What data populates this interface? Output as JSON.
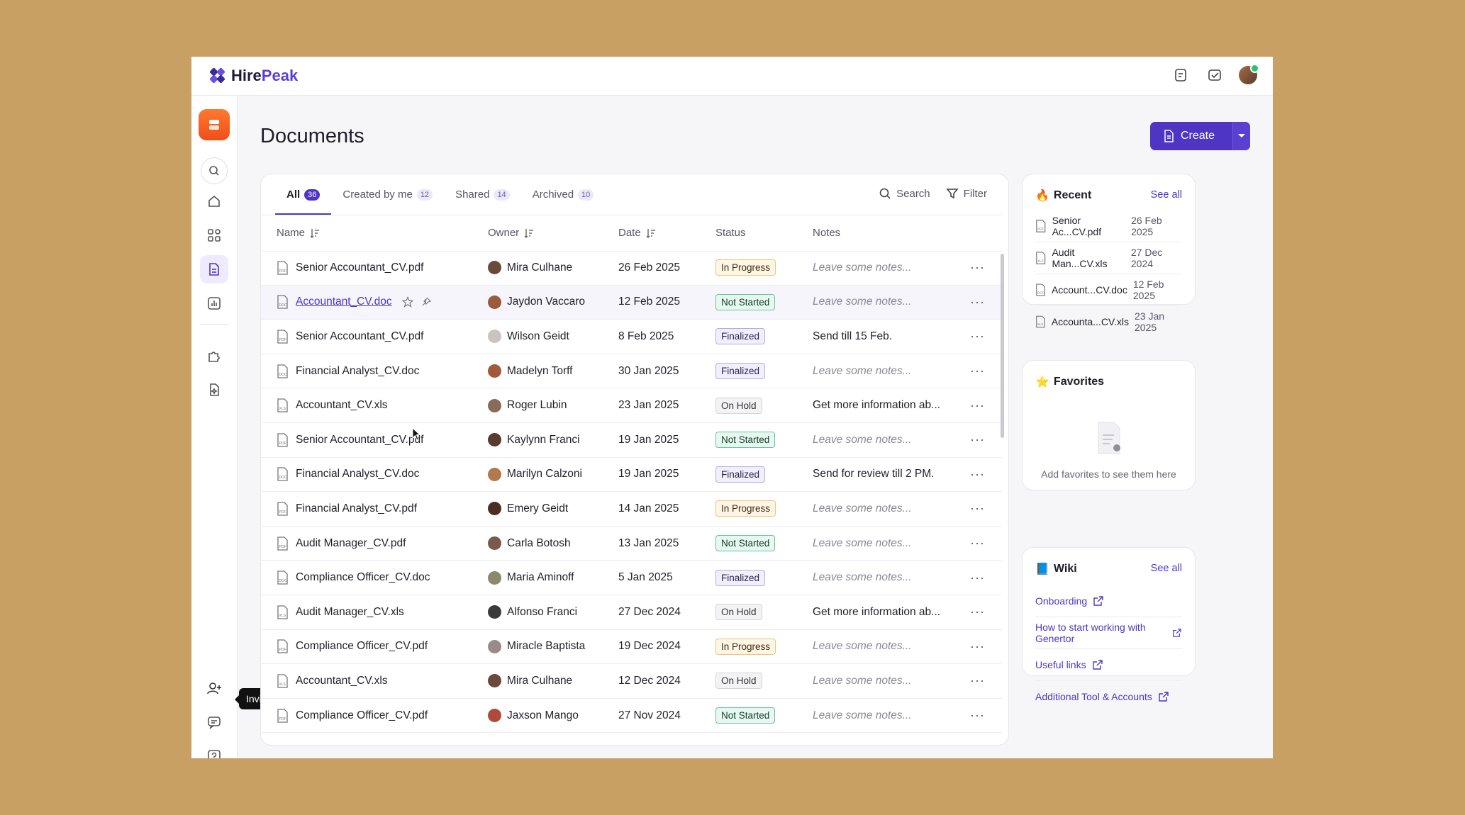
{
  "app": {
    "brand_prefix": "Hire",
    "brand_suffix": "Peak"
  },
  "page": {
    "title": "Documents",
    "create_label": "Create"
  },
  "tabs": [
    {
      "label": "All",
      "count": "36"
    },
    {
      "label": "Created by me",
      "count": "12"
    },
    {
      "label": "Shared",
      "count": "14"
    },
    {
      "label": "Archived",
      "count": "10"
    }
  ],
  "tools": {
    "search": "Search",
    "filter": "Filter"
  },
  "columns": {
    "name": "Name",
    "owner": "Owner",
    "date": "Date",
    "status": "Status",
    "notes": "Notes"
  },
  "rows": [
    {
      "name": "Senior Accountant_CV.pdf",
      "ext": "pdf",
      "owner": "Mira Culhane",
      "avatar": "#6a4a3a",
      "date": "26 Feb 2025",
      "status": "In Progress",
      "notes": "Leave some notes..."
    },
    {
      "name": "Accountant_CV.doc",
      "ext": "doc",
      "owner": "Jaydon Vaccaro",
      "avatar": "#9b5a3a",
      "date": "12 Feb 2025",
      "status": "Not Started",
      "notes": "Leave some notes..."
    },
    {
      "name": "Senior Accountant_CV.pdf",
      "ext": "pdf",
      "owner": "Wilson Geidt",
      "avatar": "#c9c4bf",
      "date": "8 Feb 2025",
      "status": "Finalized",
      "notes": "Send till 15 Feb."
    },
    {
      "name": "Financial Analyst_CV.doc",
      "ext": "doc",
      "owner": "Madelyn Torff",
      "avatar": "#a2583a",
      "date": "30 Jan 2025",
      "status": "Finalized",
      "notes": "Leave some notes..."
    },
    {
      "name": "Accountant_CV.xls",
      "ext": "xls",
      "owner": "Roger Lubin",
      "avatar": "#8a6a5a",
      "date": "23 Jan 2025",
      "status": "On Hold",
      "notes": "Get more information ab..."
    },
    {
      "name": "Senior Accountant_CV.pdf",
      "ext": "pdf",
      "owner": "Kaylynn Franci",
      "avatar": "#5a3a2e",
      "date": "19 Jan 2025",
      "status": "Not Started",
      "notes": "Leave some notes..."
    },
    {
      "name": "Financial Analyst_CV.doc",
      "ext": "doc",
      "owner": "Marilyn Calzoni",
      "avatar": "#b07a4a",
      "date": "19 Jan 2025",
      "status": "Finalized",
      "notes": "Send for review till 2 PM."
    },
    {
      "name": "Financial Analyst_CV.pdf",
      "ext": "pdf",
      "owner": "Emery Geidt",
      "avatar": "#4a2e22",
      "date": "14 Jan 2025",
      "status": "In Progress",
      "notes": "Leave some notes..."
    },
    {
      "name": "Audit Manager_CV.pdf",
      "ext": "pdf",
      "owner": "Carla Botosh",
      "avatar": "#7a5a4a",
      "date": "13 Jan 2025",
      "status": "Not Started",
      "notes": "Leave some notes..."
    },
    {
      "name": "Compliance Officer_CV.doc",
      "ext": "doc",
      "owner": "Maria Aminoff",
      "avatar": "#8a8a6a",
      "date": "5 Jan 2025",
      "status": "Finalized",
      "notes": "Leave some notes..."
    },
    {
      "name": "Audit Manager_CV.xls",
      "ext": "xls",
      "owner": "Alfonso Franci",
      "avatar": "#3a3a3a",
      "date": "27 Dec 2024",
      "status": "On Hold",
      "notes": "Get more information ab..."
    },
    {
      "name": "Compliance Officer_CV.pdf",
      "ext": "pdf",
      "owner": "Miracle Baptista",
      "avatar": "#9a8a8a",
      "date": "19 Dec 2024",
      "status": "In Progress",
      "notes": "Leave some notes..."
    },
    {
      "name": "Accountant_CV.xls",
      "ext": "xls",
      "owner": "Mira Culhane",
      "avatar": "#6a4a3a",
      "date": "12 Dec 2024",
      "status": "On Hold",
      "notes": "Leave some notes..."
    },
    {
      "name": "Compliance Officer_CV.pdf",
      "ext": "pdf",
      "owner": "Jaxson Mango",
      "avatar": "#b04a3a",
      "date": "27 Nov 2024",
      "status": "Not Started",
      "notes": "Leave some notes..."
    }
  ],
  "recent": {
    "title": "Recent",
    "see_all": "See all",
    "items": [
      {
        "name": "Senior Ac...CV.pdf",
        "ext": "pdf",
        "date": "26 Feb 2025"
      },
      {
        "name": "Audit Man...CV.xls",
        "ext": "xls",
        "date": "27 Dec 2024"
      },
      {
        "name": "Account...CV.doc",
        "ext": "doc",
        "date": "12 Feb 2025"
      },
      {
        "name": "Accounta...CV.xls",
        "ext": "xls",
        "date": "23 Jan 2025"
      }
    ]
  },
  "favorites": {
    "title": "Favorites",
    "empty": "Add favorites to see them here"
  },
  "wiki": {
    "title": "Wiki",
    "see_all": "See all",
    "items": [
      "Onboarding",
      "How to start working with Genertor",
      "Useful links",
      "Additional Tool & Accounts"
    ]
  },
  "tooltip": "Invite new people",
  "colors": {
    "accent": "#4f35c4",
    "background": "#c9a063",
    "logo_orange": "#f04e1a"
  }
}
